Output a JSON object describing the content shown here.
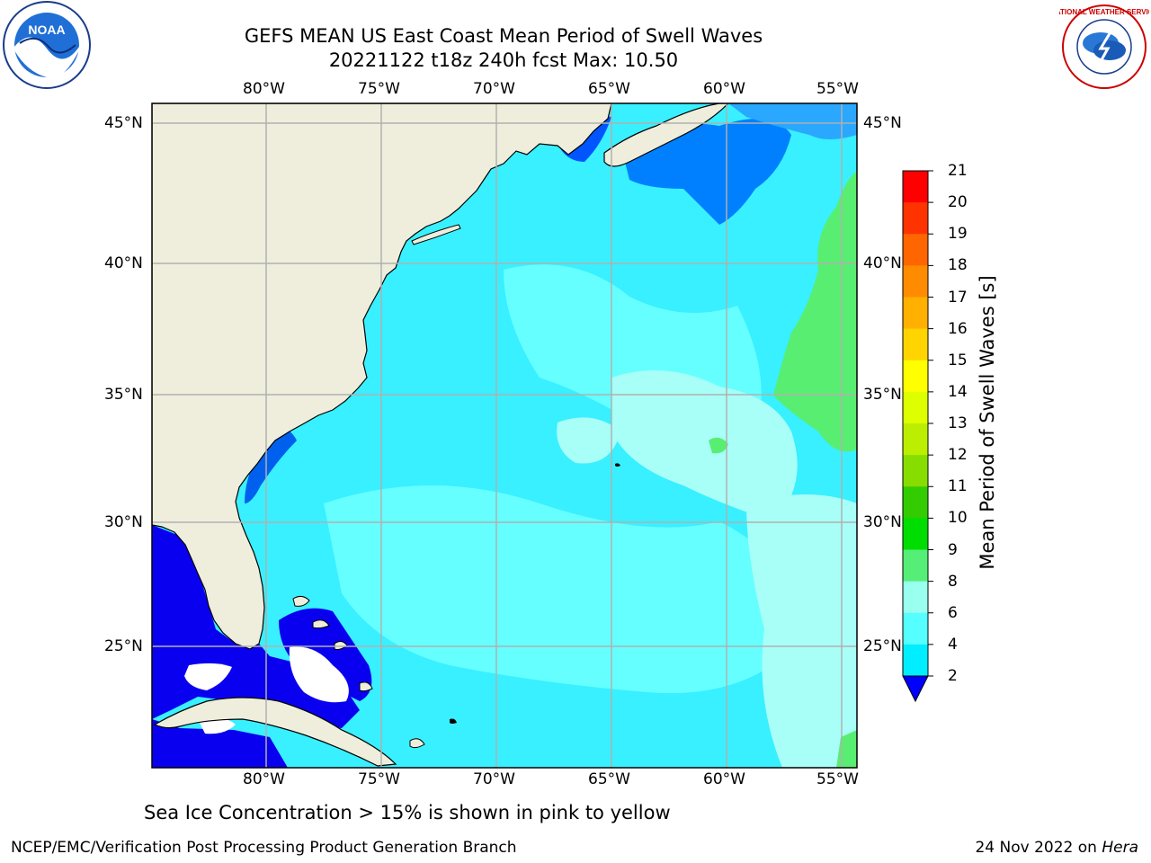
{
  "header": {
    "title_line1": "GEFS MEAN US East Coast Mean Period of Swell Waves",
    "title_line2": "20221122 t18z 240h fcst   Max: 10.50"
  },
  "logos": {
    "left": {
      "icon": "noaa-logo",
      "text": "NOAA"
    },
    "right": {
      "icon": "nws-logo",
      "text": "NATIONAL WEATHER SERVICE"
    }
  },
  "map": {
    "lon_labels": [
      "80°W",
      "75°W",
      "70°W",
      "65°W",
      "60°W",
      "55°W"
    ],
    "lat_labels": [
      "45°N",
      "40°N",
      "35°N",
      "30°N",
      "25°N"
    ],
    "land_color": "#efeedd",
    "grid_color": "#b0b0b0"
  },
  "colorbar": {
    "label": "Mean Period of Swell Waves [s]",
    "ticks": [
      "21",
      "20",
      "19",
      "18",
      "17",
      "16",
      "15",
      "14",
      "13",
      "12",
      "11",
      "10",
      "9",
      "8",
      "6",
      "4",
      "2"
    ],
    "colors_top_to_bottom": [
      "#ff0000",
      "#ff3300",
      "#ff6600",
      "#ff8c00",
      "#ffb000",
      "#ffd400",
      "#ffff00",
      "#ddff00",
      "#bbee00",
      "#88dd00",
      "#33cc00",
      "#00dd00",
      "#55ee77",
      "#99ffee",
      "#55ffff",
      "#00eeff",
      "#0099ff",
      "#0000ff"
    ]
  },
  "footer": {
    "sea_ice_note": "Sea Ice Concentration > 15% is shown in pink to yellow",
    "credit_left": "NCEP/EMC/Verification Post Processing Product Generation Branch",
    "credit_right_date": "24 Nov 2022 on ",
    "credit_right_machine": "Hera"
  }
}
